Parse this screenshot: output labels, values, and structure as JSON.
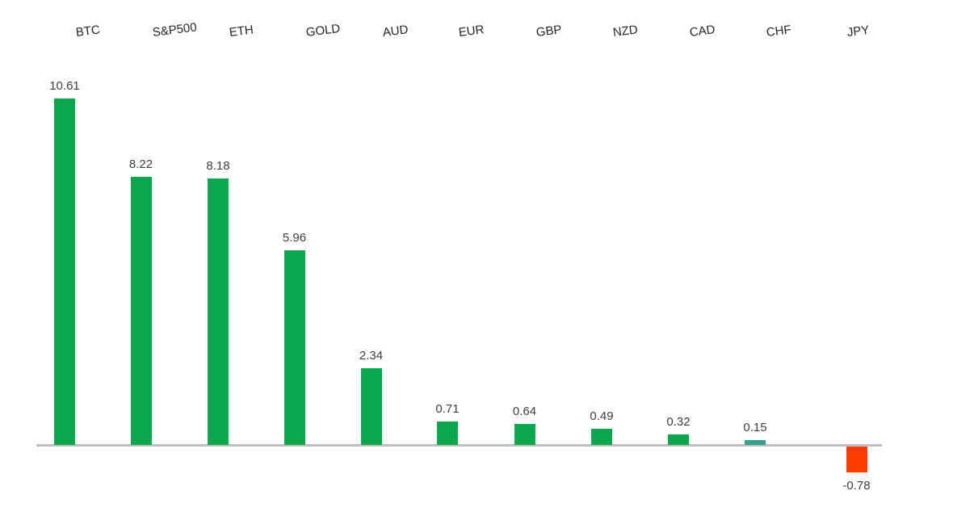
{
  "chart_data": {
    "type": "bar",
    "categories": [
      "BTC",
      "S&P500",
      "ETH",
      "GOLD",
      "AUD",
      "EUR",
      "GBP",
      "NZD",
      "CAD",
      "CHF",
      "JPY"
    ],
    "values": [
      10.61,
      8.22,
      8.18,
      5.96,
      2.34,
      0.71,
      0.64,
      0.49,
      0.32,
      0.15,
      -0.78
    ],
    "value_labels": [
      "10.61",
      "8.22",
      "8.18",
      "5.96",
      "2.34",
      "0.71",
      "0.64",
      "0.49",
      "0.32",
      "0.15",
      "-0.78"
    ],
    "bar_colors": [
      "#0ca64f",
      "#0ca64f",
      "#0ca64f",
      "#0ca64f",
      "#0ca64f",
      "#0ca64f",
      "#0ca64f",
      "#0ca64f",
      "#0ca64f",
      "#38a090",
      "#fb3c01"
    ],
    "colors": {
      "positive": "#0ca64f",
      "negative": "#fb3c01",
      "axis_line": "#bfbfbf",
      "value_label_text": "#3f3f3f",
      "category_label_text": "#262626",
      "background": "#ffffff"
    },
    "title": "",
    "xlabel": "",
    "ylabel": "",
    "y_baseline": 0,
    "grid": false,
    "legend": false,
    "data_labels_shown": true,
    "category_labels_position": "top",
    "category_labels_rotation_deg": -7
  }
}
